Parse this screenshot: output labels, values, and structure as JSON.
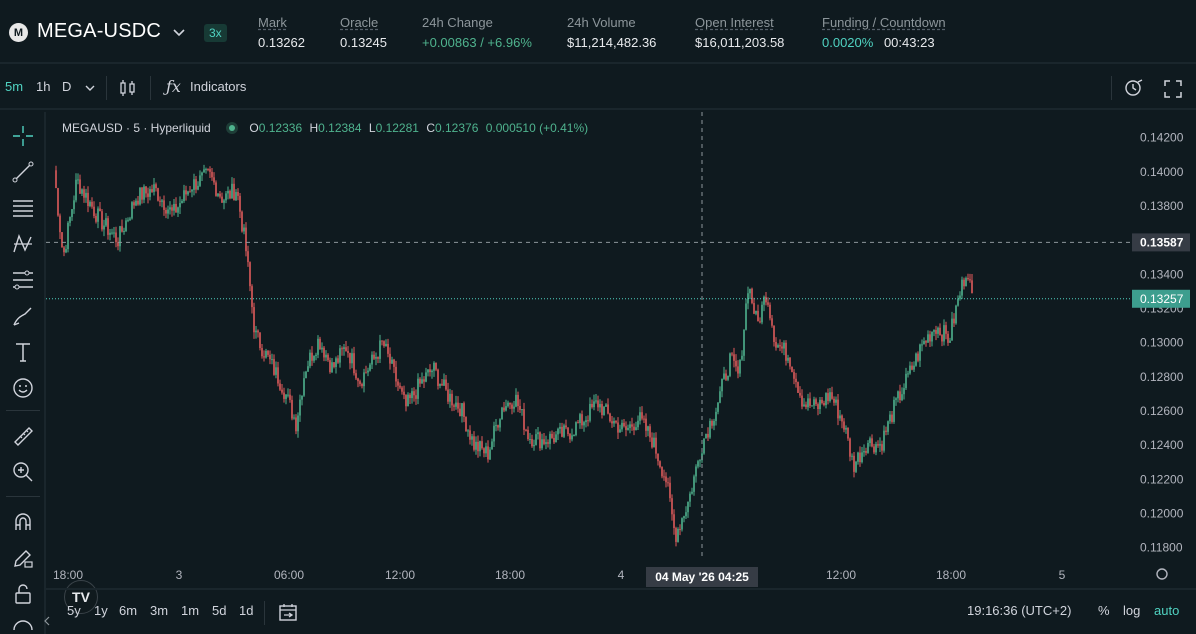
{
  "market": {
    "logo_letter": "M",
    "symbol": "MEGA-USDC",
    "leverage": "3x",
    "stats": [
      {
        "label": "Mark",
        "value": "0.13262",
        "underline": true,
        "color": "w"
      },
      {
        "label": "Oracle",
        "value": "0.13245",
        "underline": true,
        "color": "w"
      },
      {
        "label": "24h Change",
        "value": "+0.00863 / +6.96%",
        "underline": false,
        "color": "g"
      },
      {
        "label": "24h Volume",
        "value": "$11,214,482.36",
        "underline": false,
        "color": "w"
      },
      {
        "label": "Open Interest",
        "value": "$16,011,203.58",
        "underline": true,
        "color": "w"
      },
      {
        "label": "Funding / Countdown",
        "value": "0.0020%",
        "value2": "00:43:23",
        "underline": true,
        "color": "t"
      }
    ]
  },
  "toolbar": {
    "intervals": [
      "5m",
      "1h",
      "D"
    ],
    "active_interval": "5m",
    "indicators_label": "Indicators"
  },
  "legend": {
    "title": "MEGAUSD · 5 · Hyperliquid",
    "o_label": "O",
    "o": "0.12336",
    "h_label": "H",
    "h": "0.12384",
    "l_label": "L",
    "l": "0.12281",
    "c_label": "C",
    "c": "0.12376",
    "change": "0.000510 (+0.41%)"
  },
  "chart_data": {
    "type": "candlestick",
    "y_ticks": [
      "0.14200",
      "0.14000",
      "0.13800",
      "0.13600",
      "0.13400",
      "0.13200",
      "0.13000",
      "0.12800",
      "0.12600",
      "0.12400",
      "0.12200",
      "0.12000",
      "0.11800"
    ],
    "ylim": [
      0.1174,
      0.1435
    ],
    "x_ticks": [
      "18:00",
      "3",
      "06:00",
      "12:00",
      "18:00",
      "4",
      "12:00",
      "18:00",
      "5"
    ],
    "crosshair_price": "0.13587",
    "crosshair_time": "04 May '26   04:25",
    "last_price": "0.13257",
    "path": [
      [
        0,
        0.1401
      ],
      [
        2,
        0.135
      ],
      [
        5,
        0.1395
      ],
      [
        10,
        0.1372
      ],
      [
        14,
        0.136
      ],
      [
        18,
        0.1385
      ],
      [
        22,
        0.139
      ],
      [
        26,
        0.1375
      ],
      [
        30,
        0.1392
      ],
      [
        34,
        0.1398
      ],
      [
        37,
        0.1384
      ],
      [
        40,
        0.139
      ],
      [
        42,
        0.1355
      ],
      [
        44,
        0.1305
      ],
      [
        47,
        0.129
      ],
      [
        50,
        0.1275
      ],
      [
        53,
        0.1253
      ],
      [
        55,
        0.1285
      ],
      [
        58,
        0.1302
      ],
      [
        61,
        0.1285
      ],
      [
        64,
        0.1298
      ],
      [
        67,
        0.1278
      ],
      [
        70,
        0.129
      ],
      [
        72,
        0.13
      ],
      [
        74,
        0.1285
      ],
      [
        77,
        0.1262
      ],
      [
        80,
        0.1275
      ],
      [
        83,
        0.1285
      ],
      [
        86,
        0.127
      ],
      [
        89,
        0.1262
      ],
      [
        92,
        0.124
      ],
      [
        95,
        0.1235
      ],
      [
        98,
        0.1262
      ],
      [
        101,
        0.1268
      ],
      [
        104,
        0.1245
      ],
      [
        107,
        0.1243
      ],
      [
        110,
        0.1245
      ],
      [
        113,
        0.1248
      ],
      [
        116,
        0.1255
      ],
      [
        119,
        0.1265
      ],
      [
        122,
        0.1255
      ],
      [
        125,
        0.1248
      ],
      [
        128,
        0.1256
      ],
      [
        131,
        0.1243
      ],
      [
        134,
        0.122
      ],
      [
        136,
        0.1187
      ],
      [
        139,
        0.1208
      ],
      [
        142,
        0.1242
      ],
      [
        145,
        0.1262
      ],
      [
        148,
        0.129
      ],
      [
        150,
        0.128
      ],
      [
        152,
        0.1335
      ],
      [
        154,
        0.131
      ],
      [
        156,
        0.133
      ],
      [
        158,
        0.13
      ],
      [
        161,
        0.1292
      ],
      [
        164,
        0.1265
      ],
      [
        167,
        0.1262
      ],
      [
        170,
        0.127
      ],
      [
        173,
        0.1252
      ],
      [
        175,
        0.1228
      ],
      [
        178,
        0.1242
      ],
      [
        181,
        0.124
      ],
      [
        184,
        0.1262
      ],
      [
        187,
        0.128
      ],
      [
        190,
        0.1298
      ],
      [
        193,
        0.131
      ],
      [
        196,
        0.1302
      ],
      [
        198,
        0.1325
      ],
      [
        200,
        0.1345
      ],
      [
        201,
        0.1325
      ]
    ]
  },
  "bottom": {
    "ranges": [
      "5y",
      "1y",
      "6m",
      "3m",
      "1m",
      "5d",
      "1d"
    ],
    "clock": "19:16:36 (UTC+2)",
    "pct": "%",
    "log": "log",
    "auto": "auto"
  },
  "colors": {
    "up": "#4fb38e",
    "down": "#e05b5b",
    "accent": "#50d2c1",
    "bg": "#0f1a1f"
  }
}
